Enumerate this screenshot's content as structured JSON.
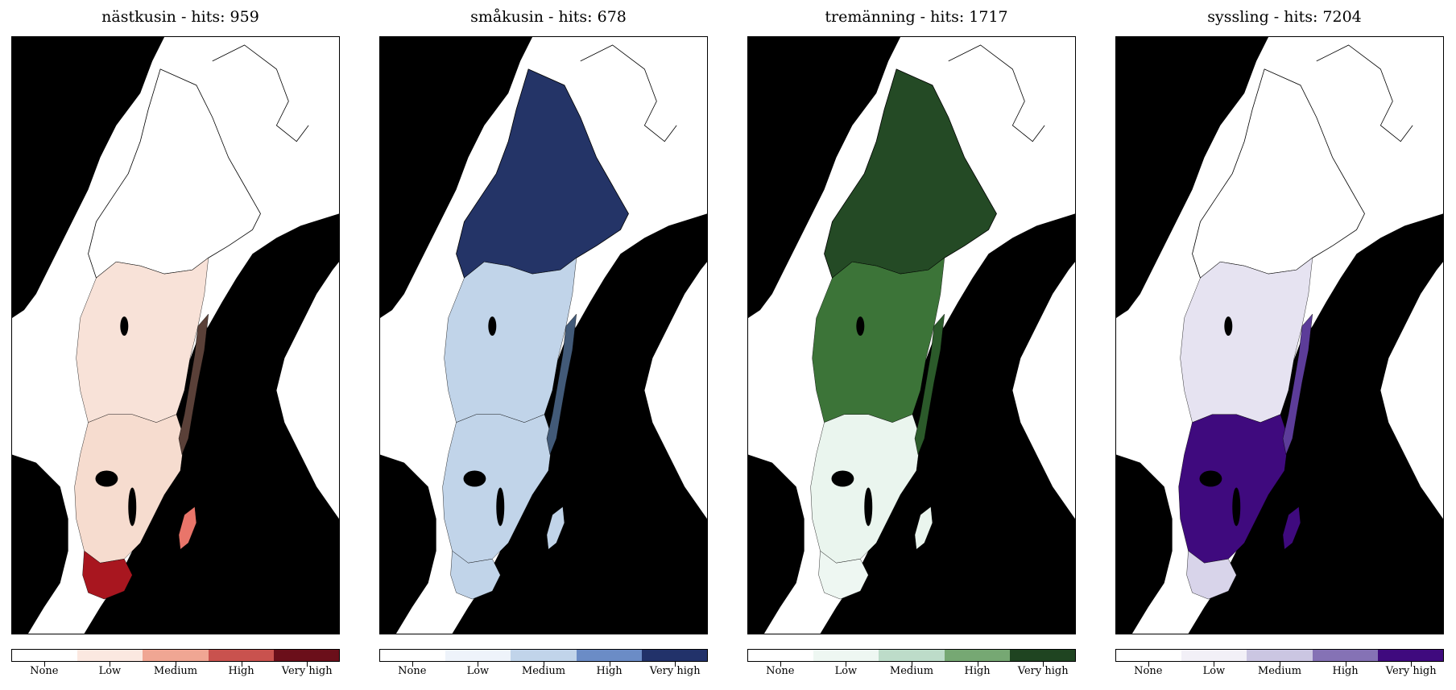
{
  "panels": [
    {
      "title": "nästkusin - hits: 959",
      "colors": [
        "#ffffff",
        "#fbe8e0",
        "#f0a693",
        "#c9524e",
        "#6b0f1a"
      ],
      "region_fills": {
        "north": "#ffffff",
        "central": "#f8e2d8",
        "south": "#f6dccf",
        "skane": "#a8161f",
        "east": "#e9756a",
        "coast": "#5a4038"
      }
    },
    {
      "title": "småkusin - hits: 678",
      "colors": [
        "#ffffff",
        "#eef3fa",
        "#c1d4ea",
        "#6b8cc6",
        "#22326a"
      ],
      "region_fills": {
        "north": "#243467",
        "central": "#c1d4e9",
        "south": "#c1d4e9",
        "skane": "#c1d4e9",
        "east": "#c1d4e9",
        "coast": "#425a78"
      }
    },
    {
      "title": "tremänning - hits: 1717",
      "colors": [
        "#ffffff",
        "#eef7f2",
        "#bddcc9",
        "#76a873",
        "#1f4421"
      ],
      "region_fills": {
        "north": "#244a25",
        "central": "#3c7438",
        "south": "#eaf5ee",
        "skane": "#eef7f2",
        "east": "#eaf5ee",
        "coast": "#2b5a2a"
      }
    },
    {
      "title": "syssling - hits: 7204",
      "colors": [
        "#ffffff",
        "#f2f0f7",
        "#cbc6e2",
        "#8572b5",
        "#3f0a7e"
      ],
      "region_fills": {
        "north": "#ffffff",
        "central": "#e6e3f1",
        "south": "#3f0a7e",
        "skane": "#d8d4ea",
        "east": "#3f0a7e",
        "coast": "#5c3c99"
      }
    }
  ],
  "legend_labels": [
    "None",
    "Low",
    "Medium",
    "High",
    "Very high"
  ]
}
